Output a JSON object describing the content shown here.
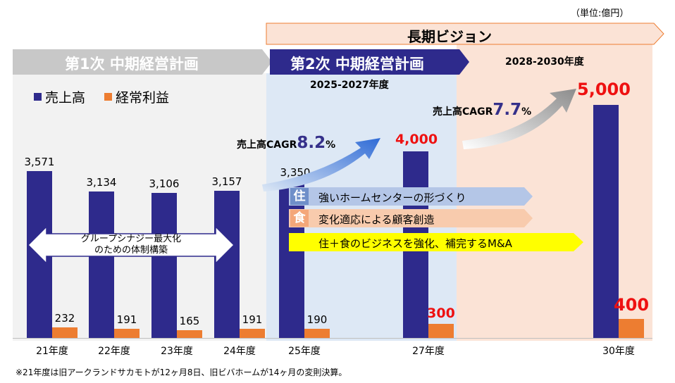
{
  "unit": "（単位:億円）",
  "footnote": "※21年度は旧アークランドサカモトが12ヶ月8日、旧ビバホームが14ヶ月の変則決算。",
  "headers": {
    "plan1": "第1次 中期経営計画",
    "plan2": "第2次 中期経営計画",
    "plan2_years": "2025-2027年度",
    "vision": "長期ビジョン",
    "vision_years": "2028-2030年度"
  },
  "legend": {
    "sales": "売上高",
    "profit": "経常利益"
  },
  "colors": {
    "sales": "#2e2a8c",
    "profit": "#ed7d31",
    "plan1_band": "#f2f2f2",
    "plan2_band": "#dde8f5",
    "vision_band": "#fbe3d6",
    "plan1_arrow": "#c8c8c8",
    "plan2_arrow": "#2e2a8c",
    "highlight_red": "#ee1111"
  },
  "synergy": {
    "line1": "グループシナジー最大化",
    "line2": "のための体制構築"
  },
  "cagr": [
    {
      "prefix": "売上高CAGR",
      "value": "8.2",
      "suffix": "%"
    },
    {
      "prefix": "売上高CAGR",
      "value": "7.7",
      "suffix": "%"
    }
  ],
  "strategies": [
    {
      "badge": "住",
      "text": "強いホームセンターの形づくり",
      "color": "#b4c6e7",
      "badge_color": "#6f8fc9"
    },
    {
      "badge": "食",
      "text": "変化適応による顧客創造",
      "color": "#f8cbad",
      "badge_color": "#f4a77a"
    },
    {
      "badge": "",
      "text": "住＋食のビジネスを強化、補完するM&A",
      "color": "#ffff00",
      "badge_color": ""
    }
  ],
  "chart_data": {
    "type": "bar",
    "categories": [
      "21年度",
      "22年度",
      "23年度",
      "24年度",
      "25年度",
      "27年度",
      "30年度"
    ],
    "series": [
      {
        "name": "売上高",
        "values": [
          3571,
          3134,
          3106,
          3157,
          3350,
          4000,
          5000
        ],
        "labels": [
          "3,571",
          "3,134",
          "3,106",
          "3,157",
          "3,350",
          "4,000",
          "5,000"
        ]
      },
      {
        "name": "経常利益",
        "values": [
          232,
          191,
          165,
          191,
          190,
          300,
          400
        ],
        "labels": [
          "232",
          "191",
          "165",
          "191",
          "190",
          "300",
          "400"
        ]
      }
    ],
    "highlight_indices": [
      5,
      6
    ],
    "ylim": [
      0,
      5500
    ]
  }
}
